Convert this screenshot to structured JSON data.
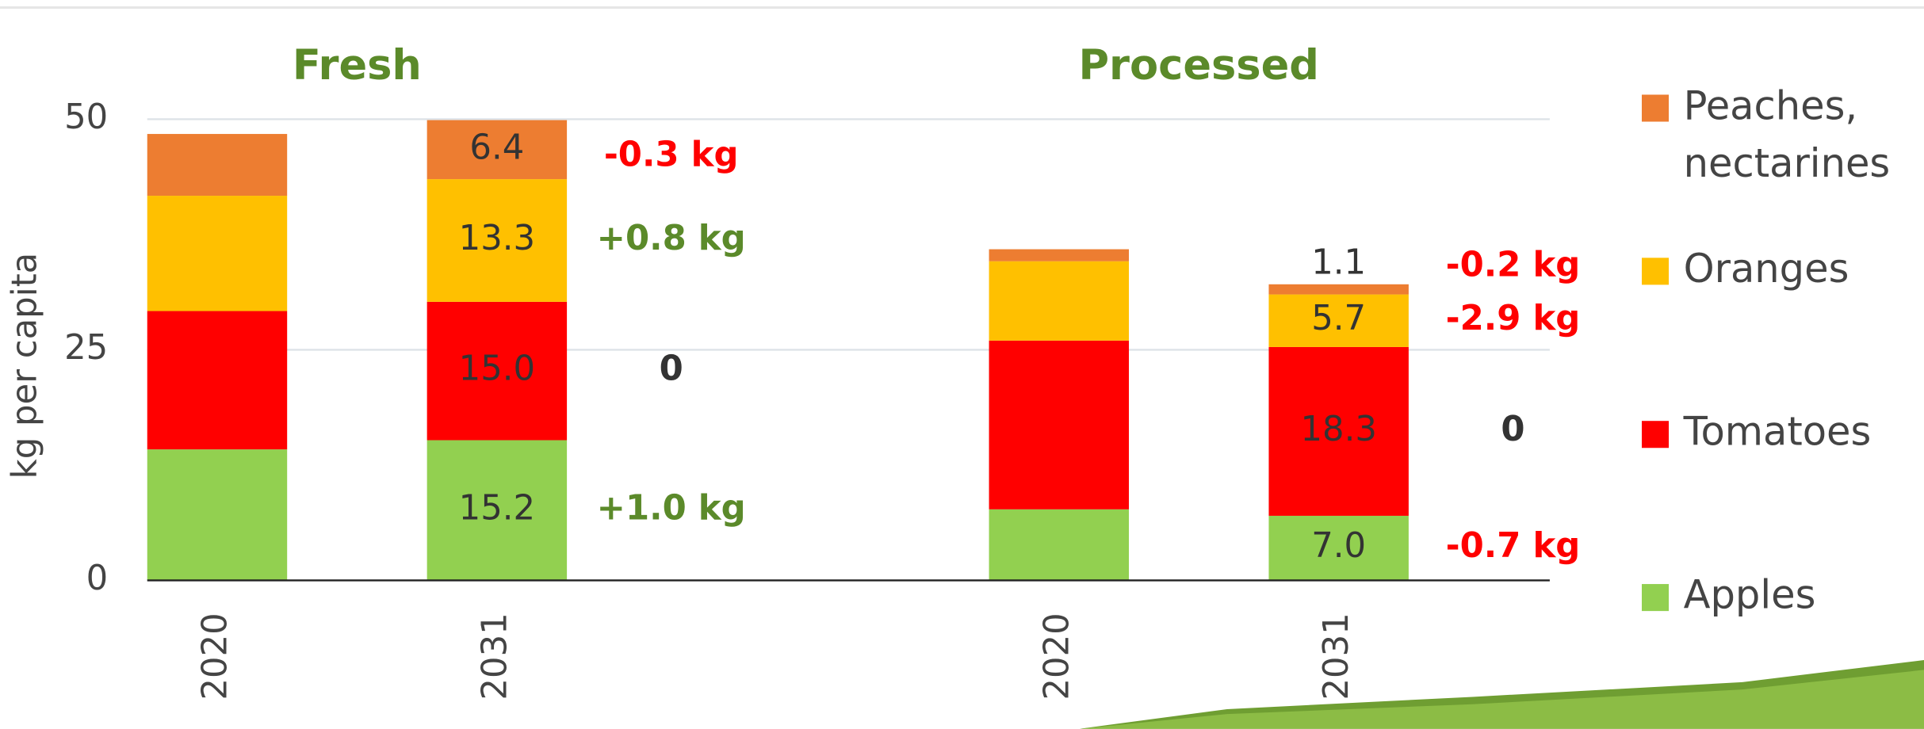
{
  "chart_data": {
    "type": "stacked-bar",
    "y_label": "kg per capita",
    "groups": [
      "Fresh",
      "Processed"
    ],
    "group_color": "#5b8a2a",
    "categories": [
      "2020",
      "2031",
      "2020",
      "2031"
    ],
    "category_groups": [
      0,
      0,
      1,
      1
    ],
    "ylim": [
      0,
      50
    ],
    "yticks": [
      0,
      25,
      50
    ],
    "grid": true,
    "series": [
      {
        "name": "Apples",
        "color": "#92d050",
        "values": [
          14.2,
          15.2,
          7.7,
          7.0
        ],
        "value_labels": [
          null,
          "15.2",
          null,
          "7.0"
        ],
        "changes": [
          null,
          {
            "text": "+1.0 kg",
            "color": "#5b8a2a"
          },
          null,
          {
            "text": "-0.7 kg",
            "color": "#ff0000"
          }
        ]
      },
      {
        "name": "Tomatoes",
        "color": "#ff0000",
        "values": [
          15.0,
          15.0,
          18.3,
          18.3
        ],
        "value_labels": [
          null,
          "15.0",
          null,
          "18.3"
        ],
        "changes": [
          null,
          {
            "text": "0",
            "color": "#333333"
          },
          null,
          {
            "text": "0",
            "color": "#333333"
          }
        ]
      },
      {
        "name": "Oranges",
        "color": "#ffc000",
        "values": [
          12.5,
          13.3,
          8.6,
          5.7
        ],
        "value_labels": [
          null,
          "13.3",
          null,
          "5.7"
        ],
        "changes": [
          null,
          {
            "text": "+0.8 kg",
            "color": "#5b8a2a"
          },
          null,
          {
            "text": "-2.9 kg",
            "color": "#ff0000"
          }
        ]
      },
      {
        "name": "Peaches, nectarines",
        "color": "#ed7d31",
        "values": [
          6.7,
          6.4,
          1.3,
          1.1
        ],
        "value_labels": [
          null,
          "6.4",
          null,
          "1.1"
        ],
        "changes": [
          null,
          {
            "text": "-0.3 kg",
            "color": "#ff0000"
          },
          null,
          {
            "text": "-0.2 kg",
            "color": "#ff0000"
          }
        ]
      }
    ]
  }
}
